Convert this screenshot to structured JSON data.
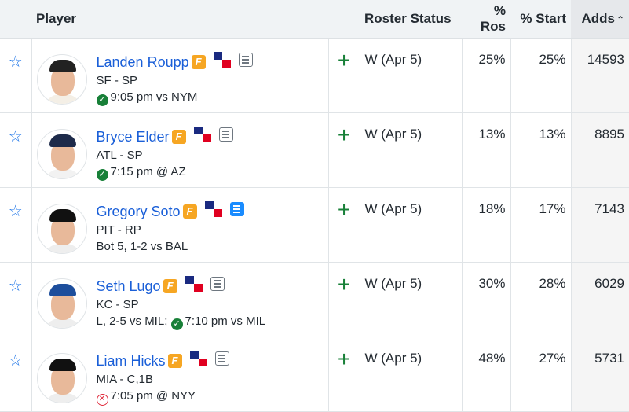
{
  "header": {
    "player": "Player",
    "roster_status": "Roster Status",
    "pct_ros": "% Ros",
    "pct_start": "% Start",
    "adds": "Adds",
    "sort_icon": "chevron-up-icon"
  },
  "colors": {
    "link": "#1a5fd8",
    "add": "#188038",
    "badge": "#f6a623"
  },
  "players": [
    {
      "name": "Landen Roupp",
      "team_pos": "SF - SP",
      "game_pre": "",
      "game_status": "ok",
      "game": "9:05 pm vs NYM",
      "notes_active": false,
      "roster": "W (Apr 5)",
      "ros": "25%",
      "start": "25%",
      "adds": "14593",
      "cap": "#222",
      "body": "#f4efe6"
    },
    {
      "name": "Bryce Elder",
      "team_pos": "ATL - SP",
      "game_pre": "",
      "game_status": "ok",
      "game": "7:15 pm @ AZ",
      "notes_active": false,
      "roster": "W (Apr 5)",
      "ros": "13%",
      "start": "13%",
      "adds": "8895",
      "cap": "#1d2a4a",
      "body": "#f2f2f2"
    },
    {
      "name": "Gregory Soto",
      "team_pos": "PIT - RP",
      "game_pre": "Bot 5, 1-2 vs BAL",
      "game_status": "",
      "game": "",
      "notes_active": true,
      "roster": "W (Apr 5)",
      "ros": "18%",
      "start": "17%",
      "adds": "7143",
      "cap": "#111",
      "body": "#eee"
    },
    {
      "name": "Seth Lugo",
      "team_pos": "KC - SP",
      "game_pre": "L, 2-5 vs MIL; ",
      "game_status": "ok",
      "game": "7:10 pm vs MIL",
      "notes_active": false,
      "roster": "W (Apr 5)",
      "ros": "30%",
      "start": "28%",
      "adds": "6029",
      "cap": "#1d4e9c",
      "body": "#eee"
    },
    {
      "name": "Liam Hicks",
      "team_pos": "MIA - C,1B",
      "game_pre": "",
      "game_status": "bad",
      "game": "7:05 pm @ NYY",
      "notes_active": false,
      "roster": "W (Apr 5)",
      "ros": "48%",
      "start": "27%",
      "adds": "5731",
      "cap": "#111",
      "body": "#eee"
    }
  ]
}
